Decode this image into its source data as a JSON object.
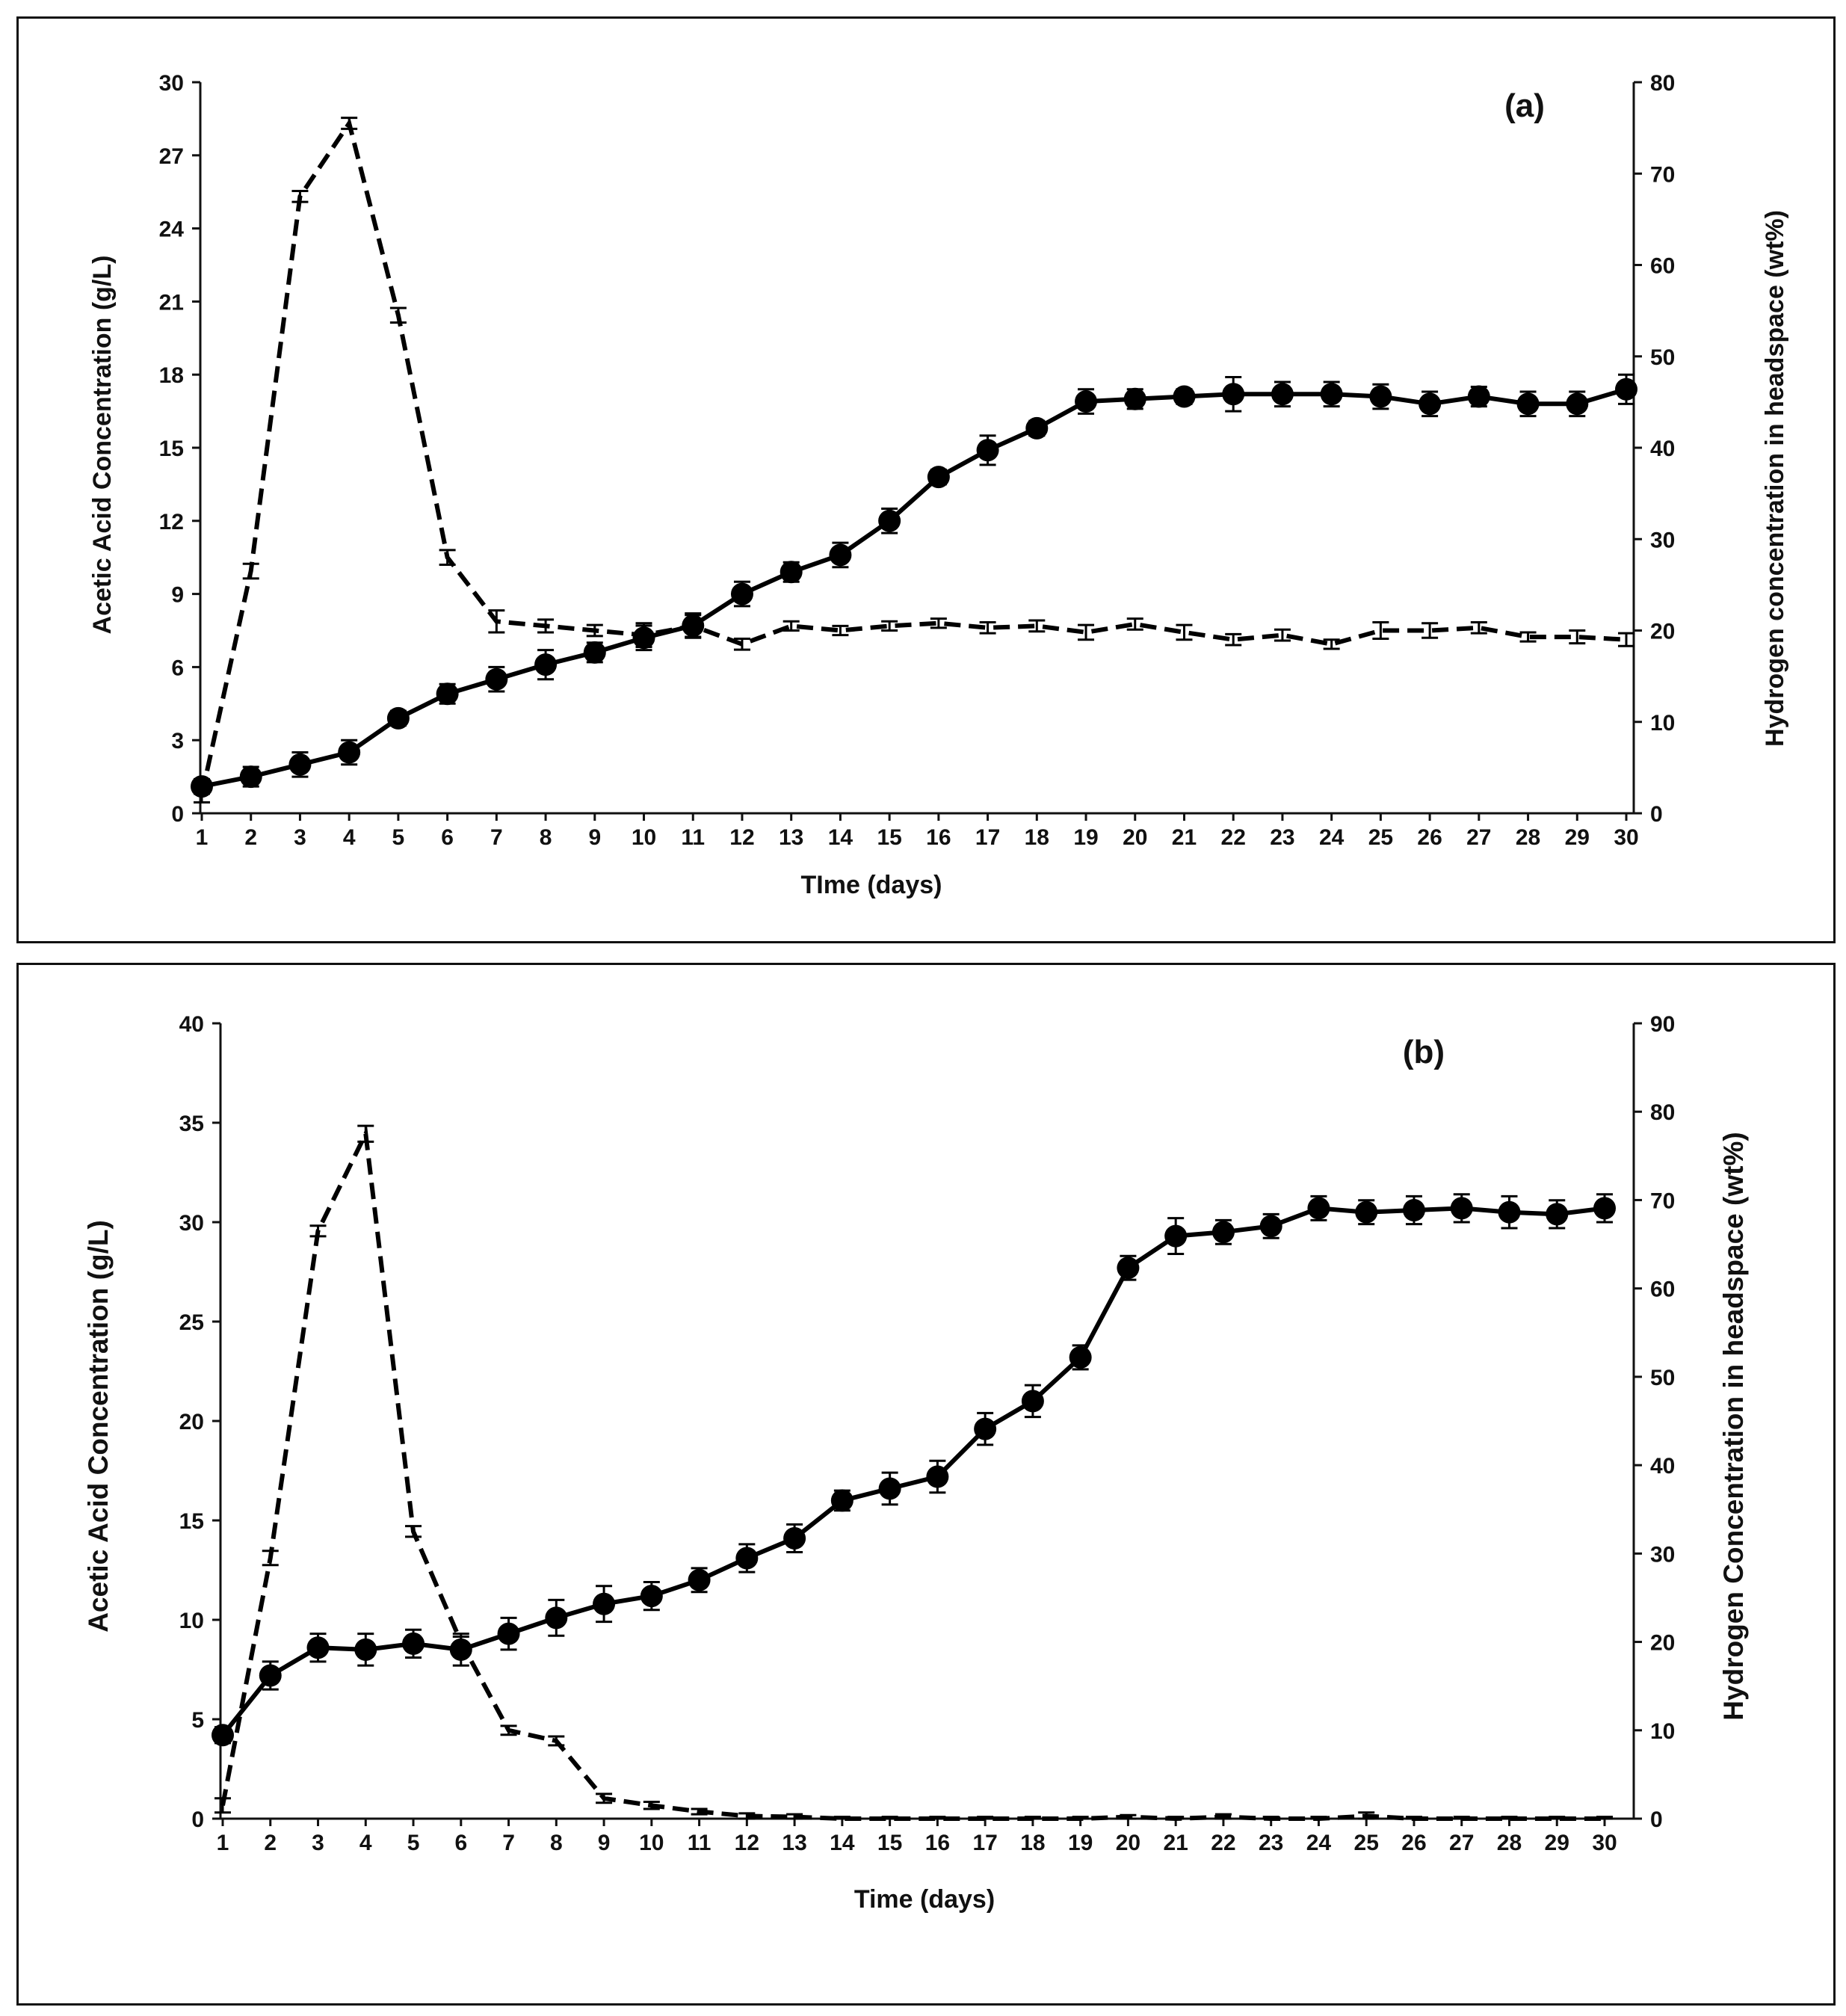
{
  "colors": {
    "line": "#000000",
    "axis": "#111111",
    "background": "#ffffff",
    "frame": "#111111"
  },
  "chart_data": [
    {
      "type": "line",
      "panel_label": "(a)",
      "xlabel": "TIme (days)",
      "ylabel_left": "Acetic Acid Concentration (g/L)",
      "ylabel_right": "Hydrogen concentration in headspace (wt%)",
      "categories": [
        "1",
        "2",
        "3",
        "4",
        "5",
        "6",
        "7",
        "8",
        "9",
        "10",
        "11",
        "12",
        "13",
        "14",
        "15",
        "16",
        "17",
        "18",
        "19",
        "20",
        "21",
        "22",
        "23",
        "24",
        "25",
        "26",
        "27",
        "28",
        "29",
        "30"
      ],
      "ylim_left": [
        0,
        30
      ],
      "yticks_left": [
        "0",
        "3",
        "6",
        "9",
        "12",
        "15",
        "18",
        "21",
        "24",
        "27",
        "30"
      ],
      "ylim_right": [
        0,
        80
      ],
      "yticks_right": [
        "0",
        "10",
        "20",
        "30",
        "40",
        "50",
        "60",
        "70",
        "80"
      ],
      "series": [
        {
          "name": "Acetic Acid Concentration",
          "axis": "left",
          "style": "solid-circles",
          "values": [
            1.1,
            1.5,
            2.0,
            2.5,
            3.9,
            4.9,
            5.5,
            6.1,
            6.6,
            7.2,
            7.7,
            9.0,
            9.9,
            10.6,
            12.0,
            13.8,
            14.9,
            15.8,
            16.9,
            17.0,
            17.1,
            17.2,
            17.2,
            17.2,
            17.1,
            16.8,
            17.1,
            16.8,
            16.8,
            17.4
          ],
          "errors": [
            0.3,
            0.4,
            0.5,
            0.5,
            0.3,
            0.4,
            0.5,
            0.6,
            0.4,
            0.5,
            0.5,
            0.5,
            0.4,
            0.5,
            0.5,
            0.3,
            0.6,
            0.3,
            0.5,
            0.4,
            0.3,
            0.7,
            0.5,
            0.5,
            0.5,
            0.5,
            0.4,
            0.5,
            0.5,
            0.6
          ]
        },
        {
          "name": "Hydrogen Concentration",
          "axis": "right",
          "style": "dashed",
          "values": [
            2.0,
            26.5,
            67.5,
            75.5,
            54.5,
            28.0,
            21.0,
            20.5,
            20.0,
            19.5,
            20.5,
            18.5,
            20.5,
            20.0,
            20.5,
            20.8,
            20.3,
            20.5,
            19.8,
            20.7,
            19.8,
            19.0,
            19.5,
            18.5,
            20.0,
            20.0,
            20.3,
            19.3,
            19.3,
            19.0
          ],
          "errors": [
            0.8,
            0.8,
            0.6,
            0.6,
            0.8,
            0.8,
            1.2,
            0.7,
            0.6,
            1.3,
            1.2,
            0.6,
            0.5,
            0.5,
            0.5,
            0.5,
            0.6,
            0.6,
            0.8,
            0.6,
            0.8,
            0.6,
            0.6,
            0.5,
            0.9,
            0.8,
            0.6,
            0.5,
            0.7,
            0.7
          ]
        }
      ]
    },
    {
      "type": "line",
      "panel_label": "(b)",
      "xlabel": "Time (days)",
      "ylabel_left": "Acetic Acid Concentration (g/L)",
      "ylabel_right": "Hydrogen Concentration in headspace (wt%)",
      "categories": [
        "1",
        "2",
        "3",
        "4",
        "5",
        "6",
        "7",
        "8",
        "9",
        "10",
        "11",
        "12",
        "13",
        "14",
        "15",
        "16",
        "17",
        "18",
        "19",
        "20",
        "21",
        "22",
        "23",
        "24",
        "25",
        "26",
        "27",
        "28",
        "29",
        "30"
      ],
      "ylim_left": [
        0,
        40
      ],
      "yticks_left": [
        "0",
        "5",
        "10",
        "15",
        "20",
        "25",
        "30",
        "35",
        "40"
      ],
      "ylim_right": [
        0,
        90
      ],
      "yticks_right": [
        "0",
        "10",
        "20",
        "30",
        "40",
        "50",
        "60",
        "70",
        "80",
        "90"
      ],
      "series": [
        {
          "name": "Acetic Acid Concentration",
          "axis": "left",
          "style": "solid-circles",
          "values": [
            4.2,
            7.2,
            8.6,
            8.5,
            8.8,
            8.5,
            9.3,
            10.1,
            10.8,
            11.2,
            12.0,
            13.1,
            14.1,
            16.0,
            16.6,
            17.2,
            19.6,
            21.0,
            23.2,
            27.7,
            29.3,
            29.5,
            29.8,
            30.7,
            30.5,
            30.6,
            30.7,
            30.5,
            30.4,
            30.7
          ],
          "errors": [
            0.4,
            0.7,
            0.7,
            0.8,
            0.7,
            0.8,
            0.8,
            0.9,
            0.9,
            0.7,
            0.6,
            0.7,
            0.7,
            0.5,
            0.8,
            0.8,
            0.8,
            0.8,
            0.6,
            0.6,
            0.9,
            0.6,
            0.6,
            0.6,
            0.6,
            0.7,
            0.7,
            0.8,
            0.7,
            0.7
          ]
        },
        {
          "name": "Hydrogen Concentration",
          "axis": "right",
          "style": "dashed",
          "values": [
            1.5,
            29.5,
            66.5,
            77.5,
            32.5,
            20.0,
            10.0,
            8.8,
            2.3,
            1.5,
            0.8,
            0.3,
            0.2,
            0.0,
            0.0,
            0.0,
            0.0,
            0.0,
            0.0,
            0.2,
            0.0,
            0.2,
            0.0,
            0.0,
            0.3,
            0.0,
            0.0,
            0.0,
            0.0,
            0.0
          ],
          "errors": [
            0.8,
            0.8,
            0.6,
            0.9,
            0.6,
            0.6,
            0.5,
            0.5,
            0.5,
            0.4,
            0.3,
            0.3,
            0.3,
            0.2,
            0.2,
            0.2,
            0.2,
            0.2,
            0.2,
            0.2,
            0.2,
            0.3,
            0.2,
            0.2,
            0.4,
            0.2,
            0.2,
            0.2,
            0.2,
            0.2
          ]
        }
      ]
    }
  ]
}
